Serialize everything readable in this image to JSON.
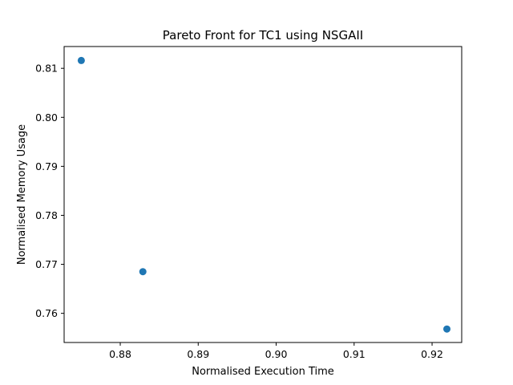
{
  "chart_data": {
    "type": "scatter",
    "title": "Pareto Front for TC1 using NSGAII",
    "xlabel": "Normalised Execution Time",
    "ylabel": "Normalised Memory Usage",
    "xlim": [
      0.8728,
      0.9238
    ],
    "ylim": [
      0.75405,
      0.81445
    ],
    "xticks": [
      0.88,
      0.89,
      0.9,
      0.91,
      0.92
    ],
    "xtick_labels": [
      "0.88",
      "0.89",
      "0.90",
      "0.91",
      "0.92"
    ],
    "yticks": [
      0.76,
      0.77,
      0.78,
      0.79,
      0.8,
      0.81
    ],
    "ytick_labels": [
      "0.76",
      "0.77",
      "0.78",
      "0.79",
      "0.80",
      "0.81"
    ],
    "grid": false,
    "series": [
      {
        "color": "#1f77b4",
        "points": [
          {
            "x": 0.875,
            "y": 0.8116
          },
          {
            "x": 0.8829,
            "y": 0.7685
          },
          {
            "x": 0.9219,
            "y": 0.7568
          }
        ]
      }
    ]
  }
}
